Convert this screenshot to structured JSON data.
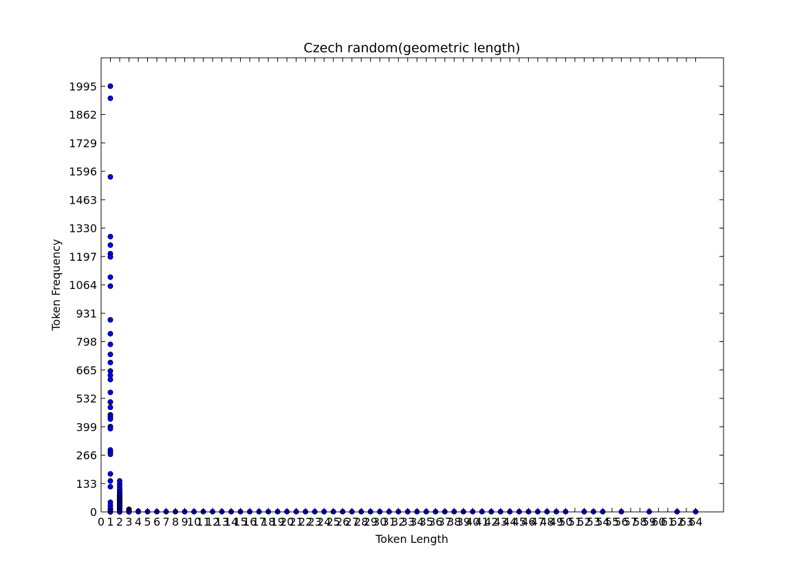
{
  "chart_data": {
    "type": "scatter",
    "title": "Czech random(geometric length)",
    "xlabel": "Token Length",
    "ylabel": "Token Frequency",
    "xlim": [
      0,
      67
    ],
    "ylim": [
      0,
      2128
    ],
    "x_ticks": [
      0,
      1,
      2,
      3,
      4,
      5,
      6,
      7,
      8,
      9,
      10,
      11,
      12,
      13,
      14,
      15,
      16,
      17,
      18,
      19,
      20,
      21,
      22,
      23,
      24,
      25,
      26,
      27,
      28,
      29,
      30,
      31,
      32,
      33,
      34,
      35,
      36,
      37,
      38,
      39,
      40,
      41,
      42,
      43,
      44,
      45,
      46,
      47,
      48,
      49,
      50,
      51,
      52,
      53,
      54,
      55,
      56,
      57,
      58,
      59,
      60,
      61,
      62,
      63,
      64
    ],
    "y_ticks": [
      0,
      133,
      266,
      399,
      532,
      665,
      798,
      931,
      1064,
      1197,
      1330,
      1463,
      1596,
      1729,
      1862,
      1995
    ],
    "grid": false,
    "marker_color": "#0000ff",
    "series": [
      {
        "points": [
          [
            1,
            1995
          ],
          [
            1,
            1938
          ],
          [
            1,
            1570
          ],
          [
            1,
            1290
          ],
          [
            1,
            1250
          ],
          [
            1,
            1210
          ],
          [
            1,
            1195
          ],
          [
            1,
            1100
          ],
          [
            1,
            1058
          ],
          [
            1,
            900
          ],
          [
            1,
            835
          ],
          [
            1,
            785
          ],
          [
            1,
            738
          ],
          [
            1,
            700
          ],
          [
            1,
            660
          ],
          [
            1,
            640
          ],
          [
            1,
            620
          ],
          [
            1,
            560
          ],
          [
            1,
            515
          ],
          [
            1,
            490
          ],
          [
            1,
            455
          ],
          [
            1,
            445
          ],
          [
            1,
            435
          ],
          [
            1,
            400
          ],
          [
            1,
            390
          ],
          [
            1,
            290
          ],
          [
            1,
            280
          ],
          [
            1,
            270
          ],
          [
            1,
            178
          ],
          [
            1,
            145
          ],
          [
            1,
            118
          ],
          [
            1,
            45
          ],
          [
            1,
            30
          ],
          [
            1,
            15
          ],
          [
            1,
            5
          ],
          [
            1,
            0
          ],
          [
            2,
            145
          ],
          [
            2,
            130
          ],
          [
            2,
            118
          ],
          [
            2,
            105
          ],
          [
            2,
            95
          ],
          [
            2,
            88
          ],
          [
            2,
            82
          ],
          [
            2,
            76
          ],
          [
            2,
            70
          ],
          [
            2,
            65
          ],
          [
            2,
            60
          ],
          [
            2,
            55
          ],
          [
            2,
            50
          ],
          [
            2,
            45
          ],
          [
            2,
            40
          ],
          [
            2,
            35
          ],
          [
            2,
            30
          ],
          [
            2,
            25
          ],
          [
            2,
            20
          ],
          [
            2,
            15
          ],
          [
            2,
            10
          ],
          [
            2,
            5
          ],
          [
            2,
            0
          ],
          [
            3,
            12
          ],
          [
            3,
            9
          ],
          [
            3,
            6
          ],
          [
            3,
            3
          ],
          [
            3,
            0
          ],
          [
            4,
            3
          ],
          [
            4,
            1
          ],
          [
            5,
            1
          ],
          [
            6,
            1
          ],
          [
            7,
            1
          ],
          [
            8,
            1
          ],
          [
            9,
            1
          ],
          [
            10,
            1
          ],
          [
            11,
            1
          ],
          [
            12,
            1
          ],
          [
            13,
            1
          ],
          [
            14,
            1
          ],
          [
            15,
            1
          ],
          [
            16,
            1
          ],
          [
            17,
            1
          ],
          [
            18,
            1
          ],
          [
            19,
            1
          ],
          [
            20,
            1
          ],
          [
            21,
            1
          ],
          [
            22,
            1
          ],
          [
            23,
            1
          ],
          [
            24,
            1
          ],
          [
            25,
            1
          ],
          [
            26,
            1
          ],
          [
            27,
            1
          ],
          [
            28,
            1
          ],
          [
            29,
            1
          ],
          [
            30,
            1
          ],
          [
            31,
            1
          ],
          [
            32,
            1
          ],
          [
            33,
            1
          ],
          [
            34,
            1
          ],
          [
            35,
            1
          ],
          [
            36,
            1
          ],
          [
            37,
            1
          ],
          [
            38,
            1
          ],
          [
            39,
            1
          ],
          [
            40,
            1
          ],
          [
            41,
            1
          ],
          [
            42,
            1
          ],
          [
            43,
            1
          ],
          [
            44,
            1
          ],
          [
            45,
            1
          ],
          [
            46,
            1
          ],
          [
            47,
            1
          ],
          [
            48,
            1
          ],
          [
            49,
            1
          ],
          [
            50,
            1
          ],
          [
            52,
            1
          ],
          [
            53,
            1
          ],
          [
            54,
            1
          ],
          [
            56,
            1
          ],
          [
            59,
            1
          ],
          [
            62,
            1
          ],
          [
            64,
            1
          ]
        ]
      }
    ]
  }
}
